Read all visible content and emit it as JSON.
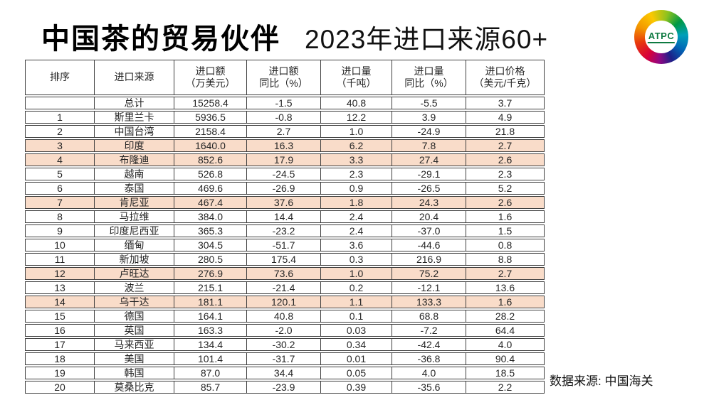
{
  "title": "中国茶的贸易伙伴",
  "subtitle": "2023年进口来源60+",
  "logo": {
    "text": "ATPC"
  },
  "source_note": "数据来源: 中国海关",
  "colors": {
    "highlight_row": "#f9dcc9",
    "table_border": "#3f3f3f",
    "logo_text": "#0e7a41"
  },
  "table": {
    "headers": [
      {
        "key": "rank",
        "line1": "排序",
        "line2": ""
      },
      {
        "key": "source",
        "line1": "进口来源",
        "line2": ""
      },
      {
        "key": "import_value",
        "line1": "进口额",
        "line2": "（万美元）"
      },
      {
        "key": "value_yoy",
        "line1": "进口额",
        "line2": "同比（%）"
      },
      {
        "key": "import_qty",
        "line1": "进口量",
        "line2": "（千吨）"
      },
      {
        "key": "qty_yoy",
        "line1": "进口量",
        "line2": "同比（%）"
      },
      {
        "key": "price",
        "line1": "进口价格",
        "line2": "（美元/千克）"
      }
    ],
    "rows": [
      {
        "rank": "",
        "source": "总计",
        "import_value": "15258.4",
        "value_yoy": "-1.5",
        "import_qty": "40.8",
        "qty_yoy": "-5.5",
        "price": "3.7",
        "highlight": false
      },
      {
        "rank": "1",
        "source": "斯里兰卡",
        "import_value": "5936.5",
        "value_yoy": "-0.8",
        "import_qty": "12.2",
        "qty_yoy": "3.9",
        "price": "4.9",
        "highlight": false
      },
      {
        "rank": "2",
        "source": "中国台湾",
        "import_value": "2158.4",
        "value_yoy": "2.7",
        "import_qty": "1.0",
        "qty_yoy": "-24.9",
        "price": "21.8",
        "highlight": false
      },
      {
        "rank": "3",
        "source": "印度",
        "import_value": "1640.0",
        "value_yoy": "16.3",
        "import_qty": "6.2",
        "qty_yoy": "7.8",
        "price": "2.7",
        "highlight": true
      },
      {
        "rank": "4",
        "source": "布隆迪",
        "import_value": "852.6",
        "value_yoy": "17.9",
        "import_qty": "3.3",
        "qty_yoy": "27.4",
        "price": "2.6",
        "highlight": true
      },
      {
        "rank": "5",
        "source": "越南",
        "import_value": "526.8",
        "value_yoy": "-24.5",
        "import_qty": "2.3",
        "qty_yoy": "-29.1",
        "price": "2.3",
        "highlight": false
      },
      {
        "rank": "6",
        "source": "泰国",
        "import_value": "469.6",
        "value_yoy": "-26.9",
        "import_qty": "0.9",
        "qty_yoy": "-26.5",
        "price": "5.2",
        "highlight": false
      },
      {
        "rank": "7",
        "source": "肯尼亚",
        "import_value": "467.4",
        "value_yoy": "37.6",
        "import_qty": "1.8",
        "qty_yoy": "24.3",
        "price": "2.6",
        "highlight": true
      },
      {
        "rank": "8",
        "source": "马拉维",
        "import_value": "384.0",
        "value_yoy": "14.4",
        "import_qty": "2.4",
        "qty_yoy": "20.4",
        "price": "1.6",
        "highlight": false
      },
      {
        "rank": "9",
        "source": "印度尼西亚",
        "import_value": "365.3",
        "value_yoy": "-23.2",
        "import_qty": "2.4",
        "qty_yoy": "-37.0",
        "price": "1.5",
        "highlight": false
      },
      {
        "rank": "10",
        "source": "缅甸",
        "import_value": "304.5",
        "value_yoy": "-51.7",
        "import_qty": "3.6",
        "qty_yoy": "-44.6",
        "price": "0.8",
        "highlight": false
      },
      {
        "rank": "11",
        "source": "新加坡",
        "import_value": "280.5",
        "value_yoy": "175.4",
        "import_qty": "0.3",
        "qty_yoy": "216.9",
        "price": "8.8",
        "highlight": false
      },
      {
        "rank": "12",
        "source": "卢旺达",
        "import_value": "276.9",
        "value_yoy": "73.6",
        "import_qty": "1.0",
        "qty_yoy": "75.2",
        "price": "2.7",
        "highlight": true
      },
      {
        "rank": "13",
        "source": "波兰",
        "import_value": "215.1",
        "value_yoy": "-21.4",
        "import_qty": "0.2",
        "qty_yoy": "-12.1",
        "price": "13.6",
        "highlight": false
      },
      {
        "rank": "14",
        "source": "乌干达",
        "import_value": "181.1",
        "value_yoy": "120.1",
        "import_qty": "1.1",
        "qty_yoy": "133.3",
        "price": "1.6",
        "highlight": true
      },
      {
        "rank": "15",
        "source": "德国",
        "import_value": "164.1",
        "value_yoy": "40.8",
        "import_qty": "0.1",
        "qty_yoy": "68.8",
        "price": "28.2",
        "highlight": false
      },
      {
        "rank": "16",
        "source": "英国",
        "import_value": "163.3",
        "value_yoy": "-2.0",
        "import_qty": "0.03",
        "qty_yoy": "-7.2",
        "price": "64.4",
        "highlight": false
      },
      {
        "rank": "17",
        "source": "马来西亚",
        "import_value": "134.4",
        "value_yoy": "-30.2",
        "import_qty": "0.34",
        "qty_yoy": "-42.4",
        "price": "4.0",
        "highlight": false
      },
      {
        "rank": "18",
        "source": "美国",
        "import_value": "101.4",
        "value_yoy": "-31.7",
        "import_qty": "0.01",
        "qty_yoy": "-36.8",
        "price": "90.4",
        "highlight": false
      },
      {
        "rank": "19",
        "source": "韩国",
        "import_value": "87.0",
        "value_yoy": "34.4",
        "import_qty": "0.05",
        "qty_yoy": "4.0",
        "price": "18.5",
        "highlight": false
      },
      {
        "rank": "20",
        "source": "莫桑比克",
        "import_value": "85.7",
        "value_yoy": "-23.9",
        "import_qty": "0.39",
        "qty_yoy": "-35.6",
        "price": "2.2",
        "highlight": false
      }
    ]
  }
}
